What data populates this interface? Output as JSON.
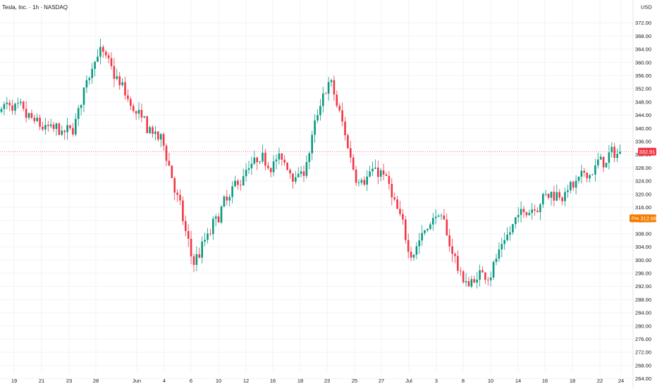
{
  "header": {
    "title": "Tesla, Inc. · 1h · NASDAQ",
    "currency": "USD"
  },
  "badges": {
    "last_price": "332.91",
    "pre_label": "Pre",
    "pre_price": "312.68"
  },
  "colors": {
    "up": "#089981",
    "down": "#f23645",
    "grid": "#f0f3fa",
    "axis_text": "#131722",
    "price_line": "#f23645",
    "pre_badge": "#f57c00"
  },
  "chart_data": {
    "type": "candlestick",
    "title": "Tesla, Inc. · 1h · NASDAQ",
    "ylabel": "USD",
    "ylim": [
      264,
      374
    ],
    "y_ticks": [
      "372.00",
      "368.00",
      "364.00",
      "360.00",
      "356.00",
      "352.00",
      "348.00",
      "344.00",
      "340.00",
      "336.00",
      "332.00",
      "328.00",
      "324.00",
      "320.00",
      "316.00",
      "312.00",
      "308.00",
      "304.00",
      "300.00",
      "296.00",
      "292.00",
      "288.00",
      "284.00",
      "280.00",
      "276.00",
      "272.00",
      "268.00",
      "264.00"
    ],
    "x_ticks": [
      "19",
      "21",
      "23",
      "28",
      "Jun",
      "4",
      "6",
      "10",
      "12",
      "16",
      "18",
      "23",
      "25",
      "27",
      "Jul",
      "3",
      "8",
      "10",
      "14",
      "16",
      "18",
      "22",
      "24"
    ],
    "last_price": 332.91,
    "premarket_price": 312.68,
    "anchors": [
      [
        "19",
        345
      ],
      [
        "21",
        340
      ],
      [
        "23",
        338
      ],
      [
        "28",
        365
      ],
      [
        "Jun",
        343
      ],
      [
        "4",
        334
      ],
      [
        "6",
        298
      ],
      [
        "10",
        315
      ],
      [
        "12",
        328
      ],
      [
        "16",
        331
      ],
      [
        "18",
        325
      ],
      [
        "23",
        356
      ],
      [
        "25",
        325
      ],
      [
        "27",
        327
      ],
      [
        "Jul",
        302
      ],
      [
        "3",
        315
      ],
      [
        "8",
        292
      ],
      [
        "10",
        298
      ],
      [
        "14",
        314
      ],
      [
        "16",
        320
      ],
      [
        "18",
        322
      ],
      [
        "22",
        330
      ],
      [
        "24",
        333
      ]
    ],
    "grid": true
  }
}
